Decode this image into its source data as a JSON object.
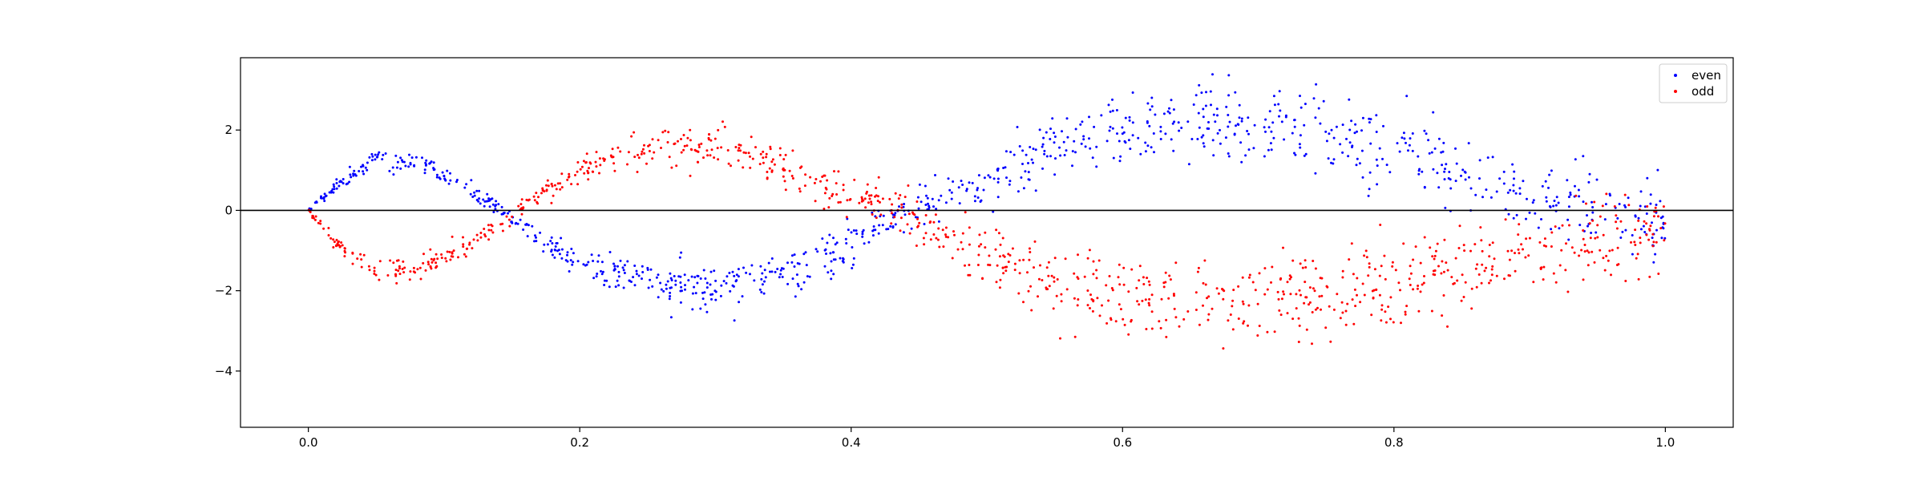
{
  "chart_data": {
    "type": "scatter",
    "title": "",
    "xlabel": "",
    "ylabel": "",
    "xlim": [
      -0.05,
      1.05
    ],
    "ylim": [
      -5.4,
      3.8
    ],
    "xticks": [
      0.0,
      0.2,
      0.4,
      0.6,
      0.8,
      1.0
    ],
    "xtick_labels": [
      "0.0",
      "0.2",
      "0.4",
      "0.6",
      "0.8",
      "1.0"
    ],
    "yticks": [
      -4,
      -2,
      0,
      2
    ],
    "ytick_labels": [
      "−4",
      "−2",
      "0",
      "2"
    ],
    "reference_line": {
      "y": 0,
      "color": "#000000"
    },
    "grid": false,
    "legend": {
      "location": "upper right"
    },
    "points_per_series": 1000,
    "series": [
      {
        "name": "even",
        "color": "#0000ff",
        "description_of_shape": "noisy oscillation starting at 0, positive early, negative near x=0.3, positive x=0.5-0.9, spread grows with x",
        "sample_points": [
          [
            0.0,
            0.0
          ],
          [
            0.02,
            0.6
          ],
          [
            0.05,
            1.3
          ],
          [
            0.08,
            1.2
          ],
          [
            0.11,
            0.7
          ],
          [
            0.14,
            0.0
          ],
          [
            0.17,
            -0.7
          ],
          [
            0.2,
            -1.3
          ],
          [
            0.25,
            -1.7
          ],
          [
            0.3,
            -1.9
          ],
          [
            0.35,
            -1.5
          ],
          [
            0.4,
            -0.9
          ],
          [
            0.44,
            0.0
          ],
          [
            0.5,
            0.7
          ],
          [
            0.55,
            1.6
          ],
          [
            0.6,
            2.0
          ],
          [
            0.65,
            2.1
          ],
          [
            0.7,
            2.1
          ],
          [
            0.75,
            1.8
          ],
          [
            0.8,
            1.5
          ],
          [
            0.85,
            0.9
          ],
          [
            0.9,
            0.4
          ],
          [
            0.95,
            0.2
          ],
          [
            1.0,
            -0.2
          ]
        ]
      },
      {
        "name": "odd",
        "color": "#ff0000",
        "description_of_shape": "mirror of even: negative early, positive near x=0.28, strongly negative x=0.55-0.85, spread grows with x",
        "sample_points": [
          [
            0.0,
            0.0
          ],
          [
            0.02,
            -0.8
          ],
          [
            0.05,
            -1.5
          ],
          [
            0.08,
            -1.5
          ],
          [
            0.11,
            -1.0
          ],
          [
            0.14,
            -0.4
          ],
          [
            0.17,
            0.4
          ],
          [
            0.2,
            1.0
          ],
          [
            0.25,
            1.6
          ],
          [
            0.3,
            1.6
          ],
          [
            0.35,
            1.1
          ],
          [
            0.4,
            0.4
          ],
          [
            0.44,
            0.0
          ],
          [
            0.5,
            -1.2
          ],
          [
            0.55,
            -1.8
          ],
          [
            0.6,
            -2.1
          ],
          [
            0.65,
            -2.3
          ],
          [
            0.7,
            -2.2
          ],
          [
            0.75,
            -2.1
          ],
          [
            0.8,
            -1.9
          ],
          [
            0.85,
            -1.3
          ],
          [
            0.9,
            -1.1
          ],
          [
            0.95,
            -0.8
          ],
          [
            1.0,
            -0.3
          ]
        ]
      }
    ]
  }
}
